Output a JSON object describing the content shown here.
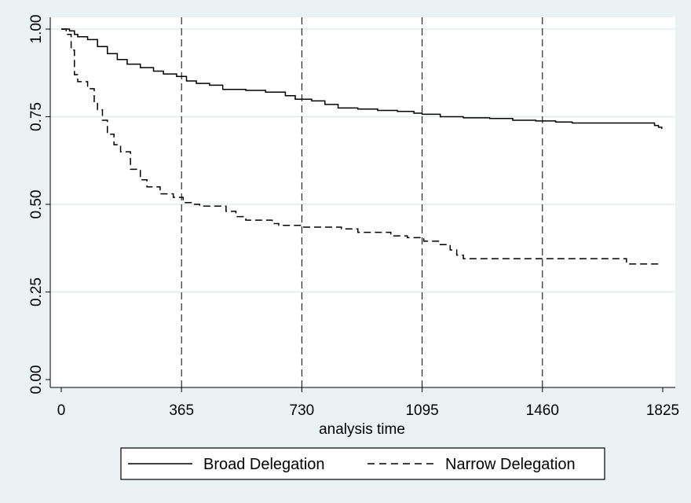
{
  "chart_data": {
    "type": "line",
    "title": "",
    "xlabel": "analysis time",
    "ylabel": "",
    "xlim": [
      0,
      1825
    ],
    "ylim": [
      0,
      1
    ],
    "x_ticks": [
      0,
      365,
      730,
      1095,
      1460,
      1825
    ],
    "x_tick_labels": [
      "0",
      "365",
      "730",
      "1095",
      "1460",
      "1825"
    ],
    "y_ticks": [
      0,
      0.25,
      0.5,
      0.75,
      1.0
    ],
    "y_tick_labels": [
      "0.00",
      "0.25",
      "0.50",
      "0.75",
      "1.00"
    ],
    "grid": "horizontal",
    "reference_lines_x": [
      365,
      730,
      1095,
      1460
    ],
    "legend": {
      "position": "bottom",
      "entries": [
        "Broad Delegation",
        "Narrow Delegation"
      ]
    },
    "series": [
      {
        "name": "Broad Delegation",
        "line_style": "solid",
        "step": true,
        "points": [
          [
            0,
            1.0
          ],
          [
            25,
            0.995
          ],
          [
            40,
            0.985
          ],
          [
            50,
            0.978
          ],
          [
            80,
            0.97
          ],
          [
            110,
            0.95
          ],
          [
            140,
            0.93
          ],
          [
            170,
            0.913
          ],
          [
            200,
            0.9
          ],
          [
            240,
            0.89
          ],
          [
            280,
            0.88
          ],
          [
            310,
            0.872
          ],
          [
            350,
            0.865
          ],
          [
            380,
            0.852
          ],
          [
            410,
            0.845
          ],
          [
            450,
            0.84
          ],
          [
            490,
            0.828
          ],
          [
            560,
            0.825
          ],
          [
            620,
            0.82
          ],
          [
            680,
            0.81
          ],
          [
            710,
            0.8
          ],
          [
            760,
            0.795
          ],
          [
            800,
            0.785
          ],
          [
            840,
            0.775
          ],
          [
            900,
            0.772
          ],
          [
            960,
            0.768
          ],
          [
            1020,
            0.765
          ],
          [
            1070,
            0.76
          ],
          [
            1095,
            0.757
          ],
          [
            1150,
            0.75
          ],
          [
            1220,
            0.747
          ],
          [
            1300,
            0.745
          ],
          [
            1370,
            0.74
          ],
          [
            1440,
            0.738
          ],
          [
            1500,
            0.735
          ],
          [
            1550,
            0.732
          ],
          [
            1620,
            0.732
          ],
          [
            1780,
            0.732
          ],
          [
            1800,
            0.725
          ],
          [
            1812,
            0.72
          ],
          [
            1822,
            0.715
          ]
        ]
      },
      {
        "name": "Narrow Delegation",
        "line_style": "dashed",
        "step": true,
        "points": [
          [
            0,
            1.0
          ],
          [
            15,
            0.985
          ],
          [
            30,
            0.94
          ],
          [
            40,
            0.87
          ],
          [
            50,
            0.85
          ],
          [
            80,
            0.83
          ],
          [
            100,
            0.79
          ],
          [
            110,
            0.77
          ],
          [
            125,
            0.74
          ],
          [
            140,
            0.7
          ],
          [
            160,
            0.67
          ],
          [
            180,
            0.65
          ],
          [
            210,
            0.6
          ],
          [
            240,
            0.57
          ],
          [
            260,
            0.55
          ],
          [
            300,
            0.53
          ],
          [
            340,
            0.52
          ],
          [
            370,
            0.505
          ],
          [
            400,
            0.5
          ],
          [
            420,
            0.495
          ],
          [
            500,
            0.48
          ],
          [
            530,
            0.465
          ],
          [
            560,
            0.455
          ],
          [
            640,
            0.445
          ],
          [
            660,
            0.44
          ],
          [
            730,
            0.435
          ],
          [
            850,
            0.43
          ],
          [
            900,
            0.42
          ],
          [
            1000,
            0.41
          ],
          [
            1050,
            0.405
          ],
          [
            1100,
            0.395
          ],
          [
            1150,
            0.385
          ],
          [
            1180,
            0.37
          ],
          [
            1200,
            0.355
          ],
          [
            1220,
            0.345
          ],
          [
            1700,
            0.345
          ],
          [
            1715,
            0.33
          ],
          [
            1822,
            0.33
          ]
        ]
      }
    ]
  }
}
